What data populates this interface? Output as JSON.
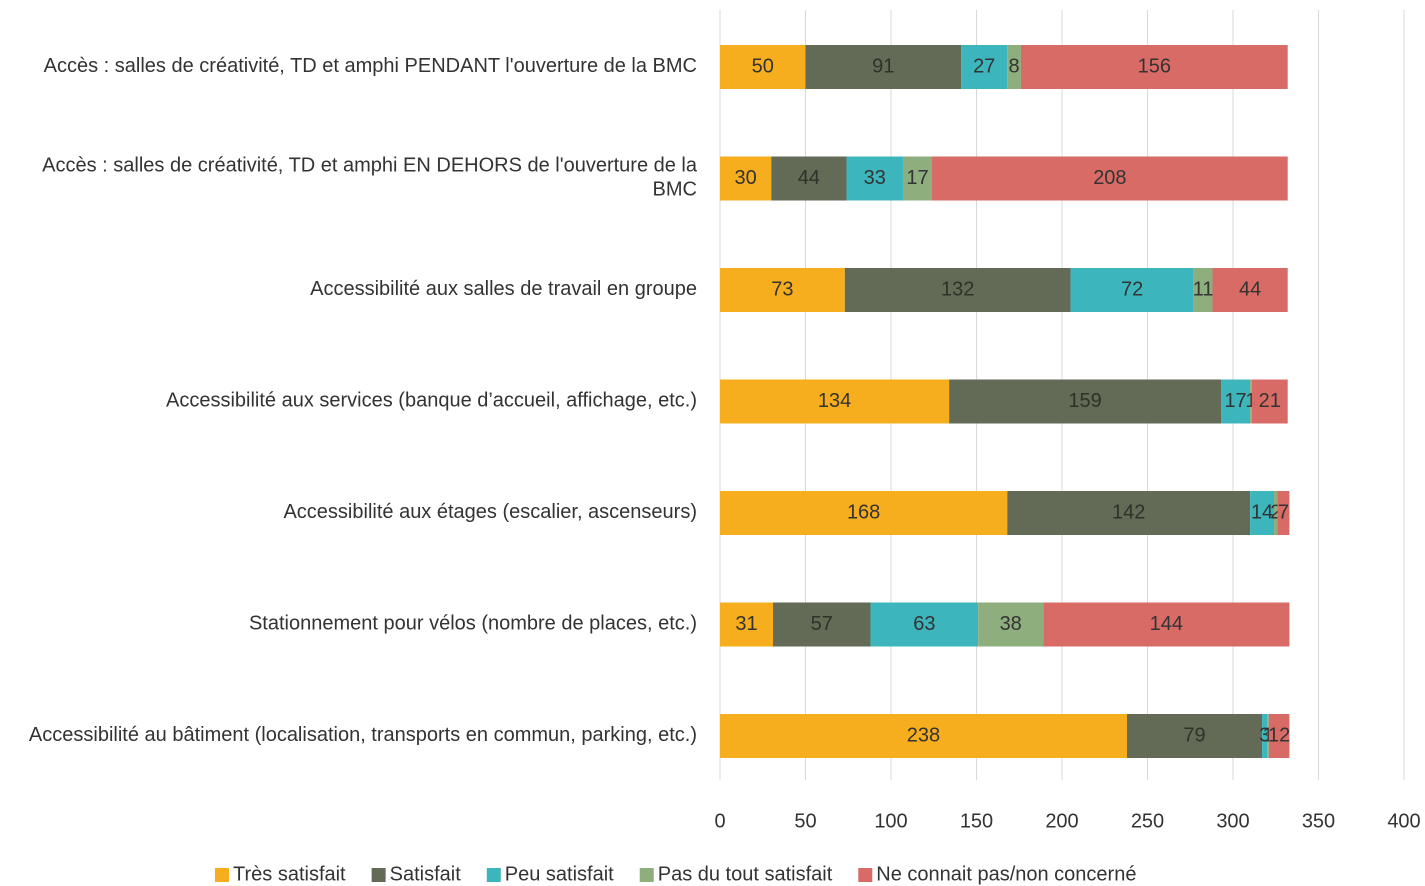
{
  "chart_data": {
    "type": "stacked_bar_horizontal",
    "categories": [
      "Accès : salles de créativité, TD et amphi PENDANT l'ouverture de la BMC",
      "Accès : salles de créativité, TD et amphi EN DEHORS de l'ouverture de la BMC",
      "Accessibilité aux salles de travail en groupe",
      "Accessibilité aux services (banque d’accueil, affichage, etc.)",
      "Accessibilité aux étages (escalier, ascenseurs)",
      "Stationnement pour vélos (nombre de places, etc.)",
      "Accessibilité au bâtiment (localisation, transports en commun, parking, etc.)"
    ],
    "series": [
      {
        "name": "Très satisfait",
        "color": "#f6ae1f",
        "values": [
          50,
          30,
          73,
          134,
          168,
          31,
          238
        ]
      },
      {
        "name": "Satisfait",
        "color": "#636a56",
        "values": [
          91,
          44,
          132,
          159,
          142,
          57,
          79
        ]
      },
      {
        "name": "Peu satisfait",
        "color": "#3cb6bc",
        "values": [
          27,
          33,
          72,
          17,
          14,
          63,
          3
        ]
      },
      {
        "name": "Pas du tout satisfait",
        "color": "#8fae7e",
        "values": [
          8,
          17,
          11,
          1,
          2,
          38,
          1
        ]
      },
      {
        "name": "Ne connait pas/non concerné",
        "color": "#d96b67",
        "values": [
          156,
          208,
          44,
          21,
          7,
          144,
          12
        ]
      }
    ],
    "xlim": [
      0,
      400
    ],
    "xticks": [
      0,
      50,
      100,
      150,
      200,
      250,
      300,
      350,
      400
    ],
    "grid": true,
    "legend": "bottom"
  }
}
